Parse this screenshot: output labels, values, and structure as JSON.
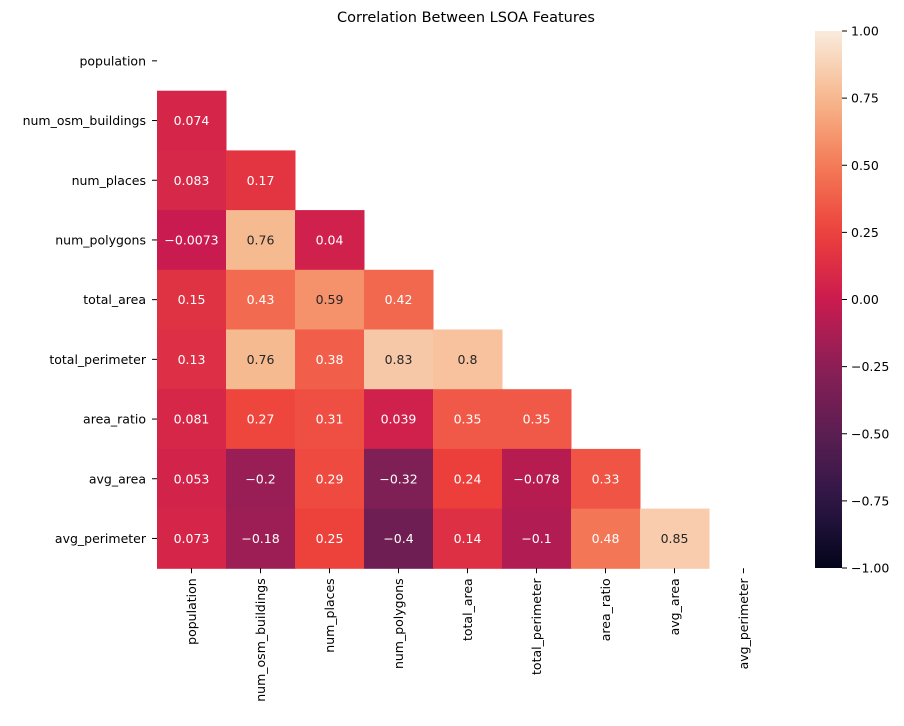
{
  "chart_data": {
    "type": "heatmap",
    "title": "Correlation Between LSOA Features",
    "labels": [
      "population",
      "num_osm_buildings",
      "num_places",
      "num_polygons",
      "total_area",
      "total_perimeter",
      "area_ratio",
      "avg_area",
      "avg_perimeter"
    ],
    "lower_triangle": [
      [],
      [
        0.074
      ],
      [
        0.083,
        0.17
      ],
      [
        -0.0073,
        0.76,
        0.04
      ],
      [
        0.15,
        0.43,
        0.59,
        0.42
      ],
      [
        0.13,
        0.76,
        0.38,
        0.83,
        0.8
      ],
      [
        0.081,
        0.27,
        0.31,
        0.039,
        0.35,
        0.35
      ],
      [
        0.053,
        -0.2,
        0.29,
        -0.32,
        0.24,
        -0.078,
        0.33
      ],
      [
        0.073,
        -0.18,
        0.25,
        -0.4,
        0.14,
        -0.1,
        0.48,
        0.85
      ]
    ],
    "vmin": -1.0,
    "vmax": 1.0,
    "colormap": "rocket",
    "colorbar_ticks": [
      "1.00",
      "0.75",
      "0.50",
      "0.25",
      "0.00",
      "−0.25",
      "−0.50",
      "−0.75",
      "−1.00"
    ],
    "colorbar_values": [
      1.0,
      0.75,
      0.5,
      0.25,
      0.0,
      -0.25,
      -0.5,
      -0.75,
      -1.0
    ],
    "annotated": true
  }
}
